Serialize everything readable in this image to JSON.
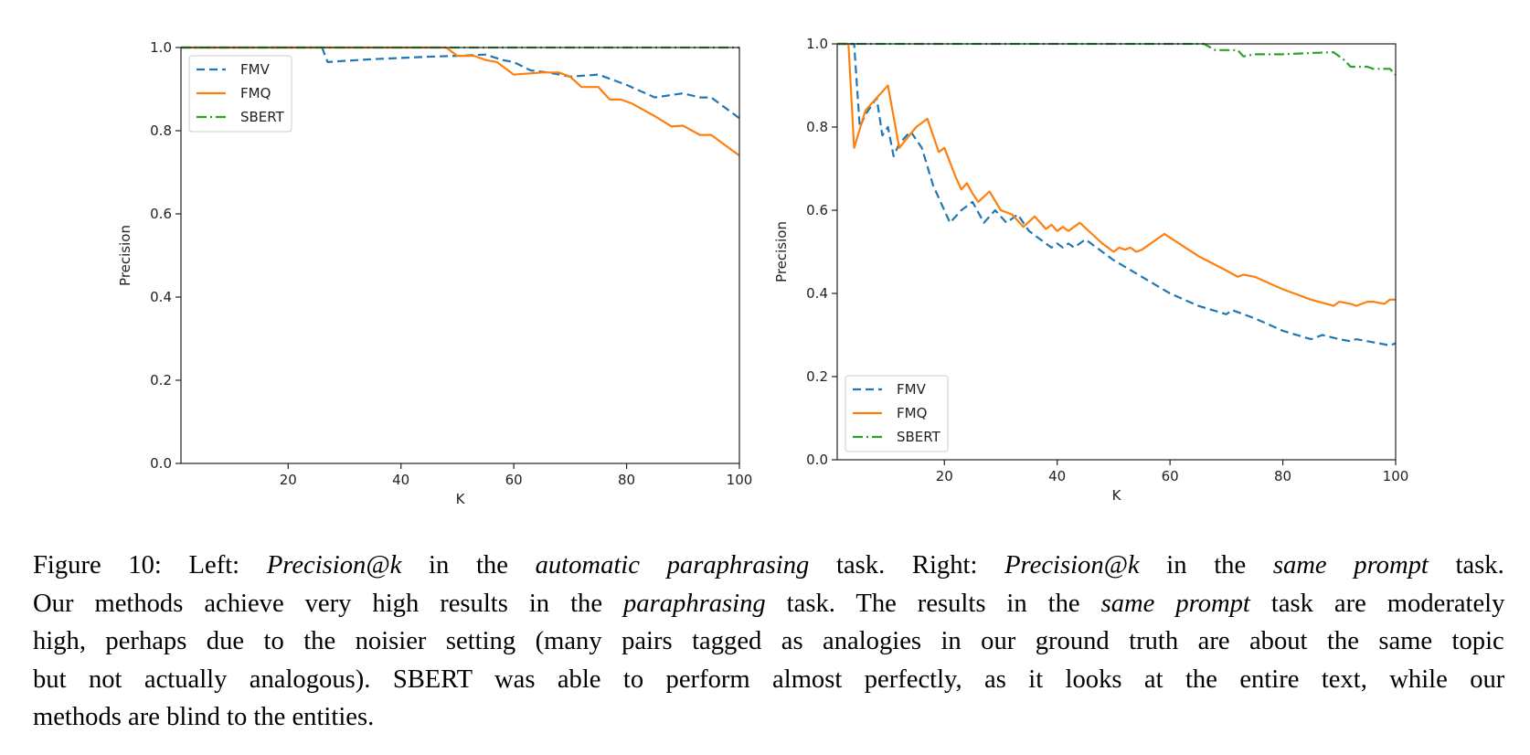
{
  "chart_data": [
    {
      "type": "line",
      "xlabel": "K",
      "ylabel": "Precision",
      "xlim": [
        1,
        100
      ],
      "ylim": [
        0,
        1.0
      ],
      "xticks": [
        20,
        40,
        60,
        80,
        100
      ],
      "yticks": [
        0.0,
        0.2,
        0.4,
        0.6,
        0.8,
        1.0
      ],
      "grid": false,
      "legend_position": "top-left",
      "series": [
        {
          "name": "FMV",
          "color": "#1f77b4",
          "dash": "dashed",
          "x": [
            1,
            26,
            27,
            30,
            35,
            40,
            45,
            50,
            55,
            58,
            60,
            63,
            66,
            70,
            75,
            80,
            85,
            90,
            93,
            95,
            100
          ],
          "y": [
            1.0,
            1.0,
            0.965,
            0.968,
            0.972,
            0.975,
            0.978,
            0.98,
            0.983,
            0.97,
            0.965,
            0.945,
            0.94,
            0.93,
            0.935,
            0.91,
            0.88,
            0.89,
            0.88,
            0.88,
            0.83
          ]
        },
        {
          "name": "FMQ",
          "color": "#ff7f0e",
          "dash": "solid",
          "x": [
            1,
            48,
            50,
            53,
            55,
            57,
            60,
            62,
            65,
            68,
            70,
            72,
            75,
            77,
            79,
            81,
            85,
            88,
            90,
            93,
            95,
            100
          ],
          "y": [
            1.0,
            1.0,
            0.98,
            0.98,
            0.97,
            0.965,
            0.935,
            0.937,
            0.94,
            0.94,
            0.93,
            0.905,
            0.905,
            0.875,
            0.875,
            0.865,
            0.835,
            0.81,
            0.812,
            0.79,
            0.79,
            0.74
          ]
        },
        {
          "name": "SBERT",
          "color": "#2ca02c",
          "dash": "dashdot",
          "x": [
            1,
            100
          ],
          "y": [
            1.0,
            1.0
          ]
        }
      ]
    },
    {
      "type": "line",
      "xlabel": "K",
      "ylabel": "Precision",
      "xlim": [
        1,
        100
      ],
      "ylim": [
        0,
        1.0
      ],
      "xticks": [
        20,
        40,
        60,
        80,
        100
      ],
      "yticks": [
        0.0,
        0.2,
        0.4,
        0.6,
        0.8,
        1.0
      ],
      "grid": false,
      "legend_position": "bottom-left",
      "series": [
        {
          "name": "FMV",
          "color": "#1f77b4",
          "dash": "dashed",
          "x": [
            1,
            3,
            4,
            5,
            6,
            8,
            9,
            10,
            11,
            12,
            14,
            16,
            18,
            21,
            23,
            25,
            27,
            29,
            31,
            33,
            35,
            37,
            39,
            40,
            41,
            42,
            43,
            45,
            48,
            50,
            55,
            60,
            65,
            70,
            71,
            75,
            80,
            85,
            87,
            90,
            92,
            93,
            95,
            97,
            99,
            100
          ],
          "y": [
            1.0,
            1.0,
            1.0,
            0.8,
            0.83,
            0.87,
            0.78,
            0.8,
            0.73,
            0.76,
            0.79,
            0.75,
            0.66,
            0.57,
            0.6,
            0.62,
            0.57,
            0.6,
            0.57,
            0.59,
            0.55,
            0.53,
            0.51,
            0.52,
            0.51,
            0.52,
            0.51,
            0.53,
            0.5,
            0.48,
            0.44,
            0.4,
            0.37,
            0.35,
            0.36,
            0.34,
            0.31,
            0.29,
            0.3,
            0.29,
            0.285,
            0.29,
            0.285,
            0.28,
            0.275,
            0.28
          ]
        },
        {
          "name": "FMQ",
          "color": "#ff7f0e",
          "dash": "solid",
          "x": [
            1,
            2,
            3,
            4,
            6,
            8,
            10,
            12,
            15,
            17,
            19,
            20,
            22,
            23,
            24,
            25,
            26,
            28,
            30,
            32,
            34,
            36,
            38,
            39,
            40,
            41,
            42,
            43,
            44,
            46,
            48,
            50,
            51,
            52,
            53,
            54,
            55,
            59,
            65,
            70,
            72,
            73,
            75,
            80,
            85,
            89,
            90,
            92,
            93,
            95,
            96,
            98,
            99,
            100
          ],
          "y": [
            1.0,
            1.0,
            1.0,
            0.75,
            0.84,
            0.87,
            0.9,
            0.75,
            0.8,
            0.82,
            0.74,
            0.75,
            0.68,
            0.65,
            0.665,
            0.64,
            0.62,
            0.645,
            0.6,
            0.59,
            0.56,
            0.585,
            0.555,
            0.565,
            0.55,
            0.56,
            0.55,
            0.56,
            0.57,
            0.545,
            0.52,
            0.5,
            0.51,
            0.505,
            0.51,
            0.5,
            0.505,
            0.543,
            0.49,
            0.455,
            0.44,
            0.445,
            0.44,
            0.41,
            0.385,
            0.37,
            0.38,
            0.375,
            0.37,
            0.38,
            0.38,
            0.375,
            0.385,
            0.385
          ]
        },
        {
          "name": "SBERT",
          "color": "#2ca02c",
          "dash": "dashdot",
          "x": [
            1,
            66,
            68,
            70,
            72,
            73,
            75,
            80,
            85,
            89,
            91,
            92,
            95,
            96,
            99,
            100
          ],
          "y": [
            1.0,
            1.0,
            0.985,
            0.985,
            0.985,
            0.97,
            0.975,
            0.975,
            0.978,
            0.98,
            0.96,
            0.945,
            0.945,
            0.94,
            0.94,
            0.925
          ]
        }
      ]
    }
  ],
  "caption": {
    "lines": [
      [
        {
          "t": "Figure 10: Left: ",
          "i": false
        },
        {
          "t": "Precision@k",
          "i": true
        },
        {
          "t": " in the ",
          "i": false
        },
        {
          "t": "automatic paraphrasing",
          "i": true
        },
        {
          "t": " task. Right: ",
          "i": false
        },
        {
          "t": "Precision@k",
          "i": true
        },
        {
          "t": " in the ",
          "i": false
        },
        {
          "t": "same prompt",
          "i": true
        },
        {
          "t": " task.",
          "i": false
        }
      ],
      [
        {
          "t": "Our methods achieve very high results in the ",
          "i": false
        },
        {
          "t": "paraphrasing",
          "i": true
        },
        {
          "t": " task. The results in the ",
          "i": false
        },
        {
          "t": "same prompt",
          "i": true
        },
        {
          "t": " task are moderately",
          "i": false
        }
      ],
      [
        {
          "t": "high, perhaps due to the noisier setting (many pairs tagged as analogies in our ground truth are about the same topic",
          "i": false
        }
      ],
      [
        {
          "t": "but not actually analogous). SBERT was able to perform almost perfectly, as it looks at the entire text, while our",
          "i": false
        }
      ],
      [
        {
          "t": "methods are blind to the entities.",
          "i": false
        }
      ]
    ]
  }
}
